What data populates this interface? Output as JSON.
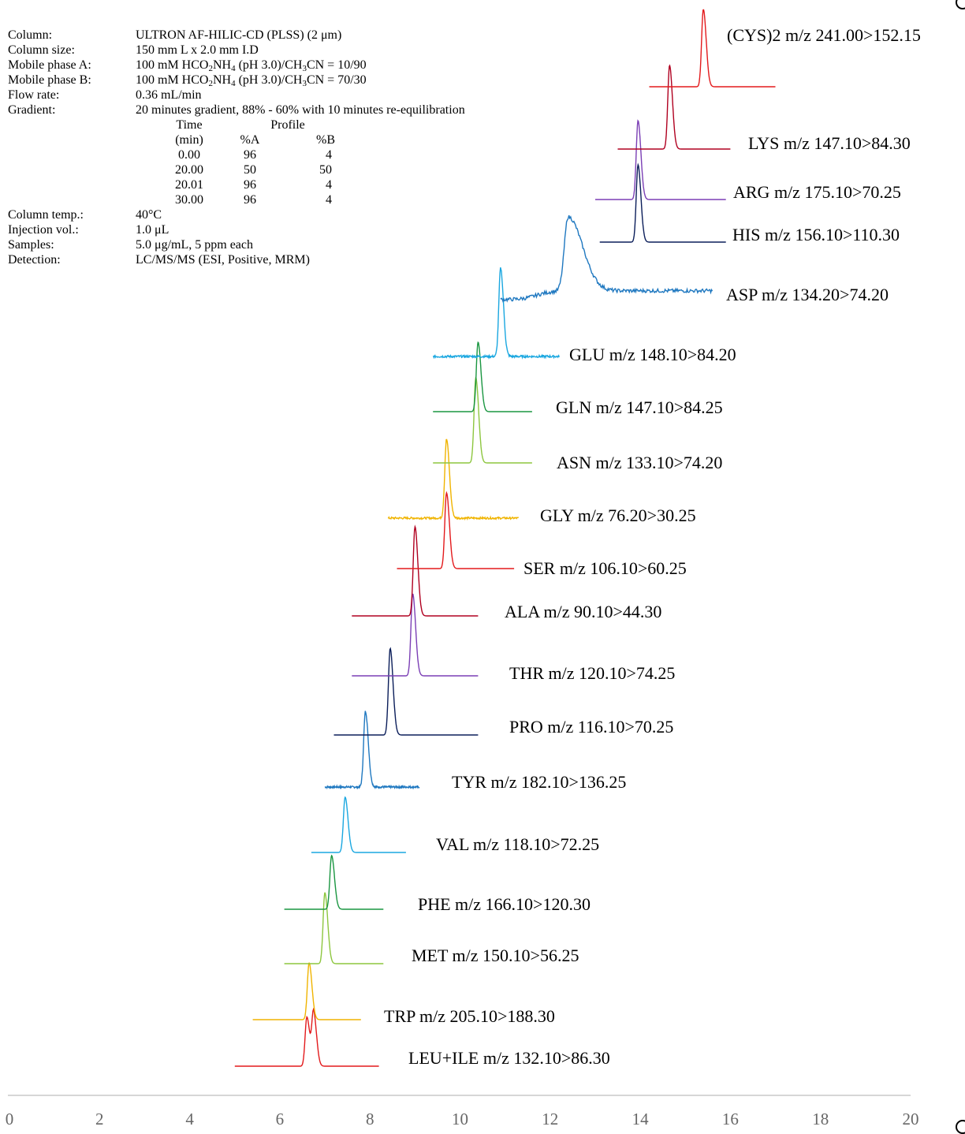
{
  "conditions": [
    {
      "label": "Column:",
      "value": "ULTRON AF-HILIC-CD (PLSS) (2 μm)"
    },
    {
      "label": "Column size:",
      "value": "150 mm L x 2.0 mm I.D"
    },
    {
      "label": "Mobile phase A:",
      "value_parts": [
        "100 mM HCO",
        "2",
        "NH",
        "4",
        " (pH 3.0)/CH",
        "3",
        "CN = 10/90"
      ]
    },
    {
      "label": "Mobile phase B:",
      "value_parts": [
        "100 mM HCO",
        "2",
        "NH",
        "4",
        " (pH 3.0)/CH",
        "3",
        "CN = 70/30"
      ]
    },
    {
      "label": "Flow rate:",
      "value": "0.36 mL/min"
    },
    {
      "label": "Gradient:",
      "value": "20 minutes gradient, 88% - 60% with 10 minutes re-equilibration"
    }
  ],
  "gradient_table": {
    "header1": {
      "time": "Time",
      "profile": "Profile"
    },
    "header2": {
      "time": "(min)",
      "a": "%A",
      "b": "%B"
    },
    "rows": [
      {
        "time": "0.00",
        "a": "96",
        "b": "4"
      },
      {
        "time": "20.00",
        "a": "50",
        "b": "50"
      },
      {
        "time": "20.01",
        "a": "96",
        "b": "4"
      },
      {
        "time": "30.00",
        "a": "96",
        "b": "4"
      }
    ]
  },
  "conditions2": [
    {
      "label": "Column temp.:",
      "value": "40°C"
    },
    {
      "label": "Injection vol.:",
      "value": "1.0 μL"
    },
    {
      "label": "Samples:",
      "value": "5.0 μg/mL, 5 ppm each"
    },
    {
      "label": "Detection:",
      "value": "LC/MS/MS (ESI, Positive, MRM)"
    }
  ],
  "chart_data": {
    "type": "line",
    "title": "",
    "xlabel": "",
    "ylabel": "",
    "xlim": [
      0,
      20
    ],
    "x_ticks": [
      0,
      2,
      4,
      6,
      8,
      10,
      12,
      14,
      16,
      18,
      20
    ],
    "grid": false,
    "series": [
      {
        "name": "LEU+ILE m/z 132.10>86.30",
        "color": "#e31a1c",
        "peaks": [
          6.6,
          6.75
        ],
        "range": [
          5.0,
          8.2
        ]
      },
      {
        "name": "TRP m/z 205.10>188.30",
        "color": "#f0b400",
        "peaks": [
          6.65
        ],
        "range": [
          5.4,
          7.8
        ]
      },
      {
        "name": "MET m/z 150.10>56.25",
        "color": "#8dc63f",
        "peaks": [
          7.0
        ],
        "range": [
          6.1,
          8.3
        ]
      },
      {
        "name": "PHE m/z 166.10>120.30",
        "color": "#1a9641",
        "peaks": [
          7.15
        ],
        "range": [
          6.1,
          8.3
        ]
      },
      {
        "name": "VAL m/z 118.10>72.25",
        "color": "#1aa7e0",
        "peaks": [
          7.45
        ],
        "range": [
          6.7,
          8.8
        ]
      },
      {
        "name": "TYR m/z 182.10>136.25",
        "color": "#1f78c0",
        "peaks": [
          7.9
        ],
        "range": [
          7.0,
          9.1
        ]
      },
      {
        "name": "PRO m/z 116.10>70.25",
        "color": "#0b1e5a",
        "peaks": [
          8.45
        ],
        "range": [
          7.2,
          10.4
        ]
      },
      {
        "name": "THR m/z 120.10>74.25",
        "color": "#7b3fb5",
        "peaks": [
          8.95
        ],
        "range": [
          7.6,
          10.4
        ]
      },
      {
        "name": "ALA m/z 90.10>44.30",
        "color": "#b00020",
        "peaks": [
          9.0
        ],
        "range": [
          7.6,
          10.4
        ]
      },
      {
        "name": "SER m/z 106.10>60.25",
        "color": "#e31a1c",
        "peaks": [
          9.7
        ],
        "range": [
          8.6,
          11.2
        ]
      },
      {
        "name": "GLY m/z 76.20>30.25",
        "color": "#f0b400",
        "peaks": [
          9.7
        ],
        "range": [
          8.4,
          11.3
        ]
      },
      {
        "name": "ASN m/z 133.10>74.20",
        "color": "#8dc63f",
        "peaks": [
          10.35
        ],
        "range": [
          9.4,
          11.6
        ]
      },
      {
        "name": "GLN m/z 147.10>84.25",
        "color": "#1a9641",
        "peaks": [
          10.4
        ],
        "range": [
          9.4,
          11.6
        ]
      },
      {
        "name": "GLU m/z 148.10>84.20",
        "color": "#1aa7e0",
        "peaks": [
          10.9
        ],
        "range": [
          9.4,
          12.2
        ]
      },
      {
        "name": "ASP m/z 134.20>74.20",
        "color": "#1f78c0",
        "peaks": [
          12.4
        ],
        "range": [
          10.9,
          15.6
        ]
      },
      {
        "name": "HIS m/z 156.10>110.30",
        "color": "#0b1e5a",
        "peaks": [
          13.95
        ],
        "range": [
          13.1,
          15.9
        ]
      },
      {
        "name": "ARG m/z 175.10>70.25",
        "color": "#7b3fb5",
        "peaks": [
          13.95
        ],
        "range": [
          13.0,
          15.9
        ]
      },
      {
        "name": "LYS m/z 147.10>84.30",
        "color": "#b00020",
        "peaks": [
          14.65
        ],
        "range": [
          13.5,
          16.0
        ]
      },
      {
        "name": "(CYS)2 m/z 241.00>152.15",
        "color": "#e31a1c",
        "peaks": [
          15.4
        ],
        "range": [
          14.2,
          17.0
        ]
      }
    ]
  }
}
